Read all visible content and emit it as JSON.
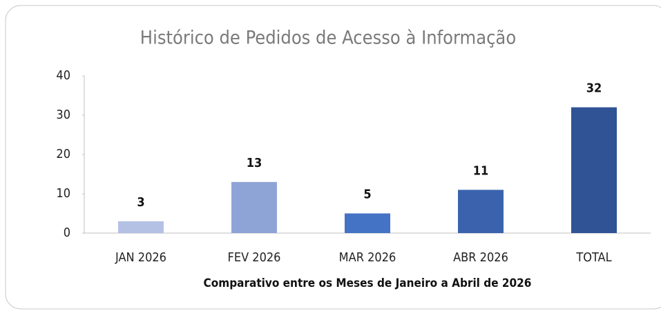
{
  "chart_data": {
    "type": "bar",
    "title": "Histórico de Pedidos de Acesso à Informação",
    "x_label": "Comparativo entre os Meses de Janeiro a Abril de 2026",
    "categories": [
      "JAN 2026",
      "FEV 2026",
      "MAR 2026",
      "ABR 2026",
      "TOTAL"
    ],
    "values": [
      3,
      13,
      5,
      11,
      32
    ],
    "colors": [
      "#b4c1e5",
      "#8fa4d6",
      "#4472c4",
      "#3a62ad",
      "#2f5395"
    ],
    "ylim": [
      0,
      40
    ],
    "yticks": [
      0,
      10,
      20,
      30,
      40
    ],
    "grid": false
  }
}
